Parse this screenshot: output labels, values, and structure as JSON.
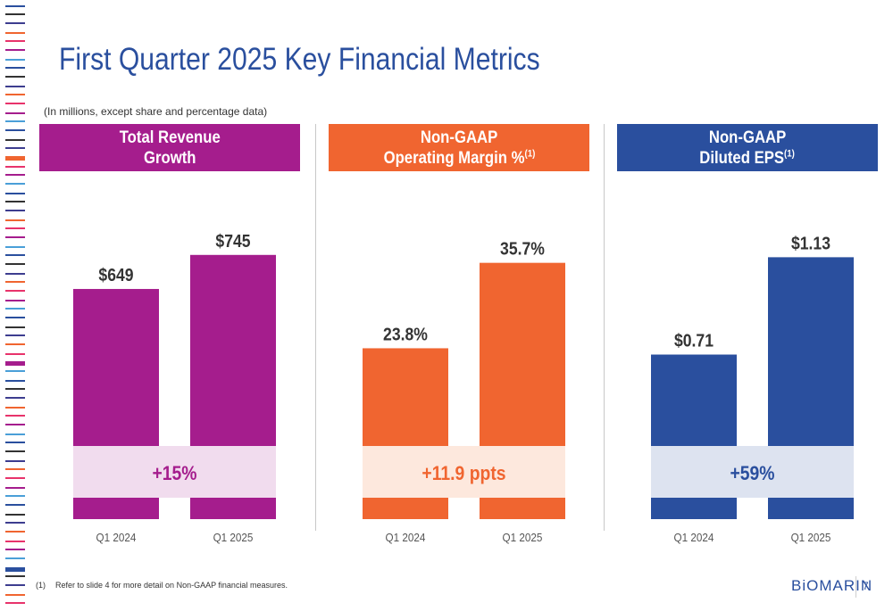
{
  "slide": {
    "title": "First Quarter 2025 Key Financial Metrics",
    "subtitle": "(In millions, except share and percentage data)",
    "footnote_number": "(1)",
    "footnote_text": "Refer to slide 4 for more detail on Non-GAAP financial measures.",
    "logo_text": "BiOMARIN",
    "page_number": "7"
  },
  "colors": {
    "magenta": "#a51d8d",
    "magenta_band": "#f1dcee",
    "orange": "#f06530",
    "orange_band": "#fde8dd",
    "blue": "#2a4f9e",
    "blue_band": "#dde3f0"
  },
  "panels": [
    {
      "header_line1": "Total Revenue",
      "header_line2": "Growth",
      "header_sup": ""
    },
    {
      "header_line1": "Non-GAAP",
      "header_line2": "Operating Margin %",
      "header_sup": "(1)"
    },
    {
      "header_line1": "Non-GAAP",
      "header_line2": "Diluted EPS",
      "header_sup": "(1)"
    }
  ],
  "chart_data": [
    {
      "type": "bar",
      "title": "Total Revenue Growth",
      "categories": [
        "Q1 2024",
        "Q1 2025"
      ],
      "values": [
        649,
        745
      ],
      "value_labels": [
        "$649",
        "$745"
      ],
      "change_label": "+15%",
      "color": "#a51d8d",
      "ylim": [
        0,
        830
      ]
    },
    {
      "type": "bar",
      "title": "Non-GAAP Operating Margin %(1)",
      "categories": [
        "Q1 2024",
        "Q1 2025"
      ],
      "values": [
        23.8,
        35.7
      ],
      "value_labels": [
        "23.8%",
        "35.7%"
      ],
      "change_label": "+11.9 ppts",
      "color": "#f06530",
      "ylim": [
        0,
        41
      ]
    },
    {
      "type": "bar",
      "title": "Non-GAAP Diluted EPS(1)",
      "categories": [
        "Q1 2024",
        "Q1 2025"
      ],
      "values": [
        0.71,
        1.13
      ],
      "value_labels": [
        "$0.71",
        "$1.13"
      ],
      "change_label": "+59%",
      "color": "#2a4f9e",
      "ylim": [
        0,
        1.27
      ]
    }
  ]
}
